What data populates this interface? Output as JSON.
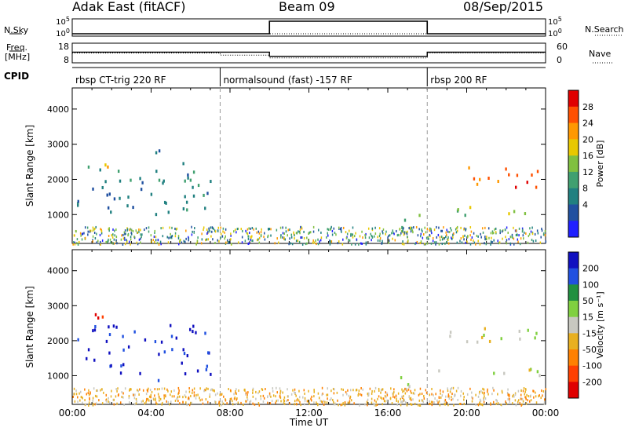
{
  "header": {
    "radar": "Adak East (fitACF)",
    "beam": "Beam 09",
    "date": "08/Sep/2015"
  },
  "side_labels": {
    "nsky": "N.Sky",
    "nsearch": "N.Search",
    "freq": "Freq.",
    "freq_unit": "[MHz]",
    "nave": "Nave",
    "cpid": "CPID"
  },
  "chart_data": [
    {
      "type": "line",
      "panel": "noise",
      "y_left_ticks": [
        "10^5",
        "10^0"
      ],
      "y_right_ticks": [
        "10^5",
        "10^0"
      ],
      "series": [
        {
          "name": "N.Sky",
          "style": "solid",
          "x": [
            "00:00",
            "10:00",
            "10:00",
            "18:00",
            "18:00",
            "24:00"
          ],
          "y": [
            1,
            1,
            100000,
            100000,
            1,
            1
          ]
        },
        {
          "name": "N.Search",
          "style": "dotted",
          "x": [
            "00:00",
            "24:00"
          ],
          "y": [
            1,
            1
          ]
        }
      ]
    },
    {
      "type": "line",
      "panel": "frequency-nave",
      "y_left_ticks": [
        "18",
        "8"
      ],
      "y_right_ticks": [
        "60",
        "0"
      ],
      "series": [
        {
          "name": "Freq.",
          "style": "solid",
          "x": [
            "00:00",
            "10:00",
            "10:00",
            "18:00",
            "18:00",
            "24:00"
          ],
          "y": [
            13.5,
            13.5,
            11,
            11,
            13.5,
            13.5
          ]
        },
        {
          "name": "Nave",
          "style": "dotted",
          "x": [
            "00:00",
            "07:30",
            "07:30",
            "10:00",
            "10:00",
            "18:00",
            "18:00",
            "24:00"
          ],
          "y": [
            30,
            30,
            22,
            22,
            12,
            12,
            30,
            30
          ]
        }
      ]
    },
    {
      "type": "table",
      "panel": "cpid",
      "segments": [
        {
          "label": "rbsp CT-trig 220 RF",
          "start": "00:00"
        },
        {
          "label": "normalsound (fast) -157 RF",
          "start": "07:30"
        },
        {
          "label": "rbsp 200 RF",
          "start": "18:00"
        }
      ]
    },
    {
      "type": "heatmap",
      "panel": "power",
      "ylabel": "Slant Range [km]",
      "xlim": [
        "00:00",
        "24:00"
      ],
      "ylim": [
        180,
        4600
      ],
      "y_ticks": [
        1000,
        2000,
        3000,
        4000
      ],
      "colorbar": {
        "label": "Power [dB]",
        "ticks": [
          "28",
          "24",
          "20",
          "16",
          "12",
          "8",
          "4"
        ],
        "colors": [
          "#e00000",
          "#ff5000",
          "#ff9800",
          "#e8c800",
          "#80c040",
          "#40a070",
          "#208080",
          "#2050a0",
          "#2020ff"
        ]
      },
      "regions": [
        {
          "t": [
            0.2,
            7.0
          ],
          "r": [
            900,
            2500
          ],
          "level": 6
        },
        {
          "t": [
            0.8,
            2.0
          ],
          "r": [
            2300,
            2600
          ],
          "level": 2
        },
        {
          "t": [
            3.8,
            5.0
          ],
          "r": [
            2800,
            3200
          ],
          "level": 6
        },
        {
          "t": [
            16.5,
            18.0
          ],
          "r": [
            600,
            1200
          ],
          "level": 4
        },
        {
          "t": [
            18.0,
            24.0
          ],
          "r": [
            1000,
            1250
          ],
          "level": 4
        },
        {
          "t": [
            18.6,
            23.6
          ],
          "r": [
            1800,
            2400
          ],
          "level": 1
        }
      ]
    },
    {
      "type": "heatmap",
      "panel": "velocity",
      "ylabel": "Slant Range [km]",
      "xlabel": "Time UT",
      "xlim": [
        "00:00",
        "24:00"
      ],
      "ylim": [
        180,
        4600
      ],
      "y_ticks": [
        1000,
        2000,
        3000,
        4000
      ],
      "x_ticks": [
        "00:00",
        "04:00",
        "08:00",
        "12:00",
        "16:00",
        "20:00",
        "00:00"
      ],
      "colorbar": {
        "label": "Velocity [m s⁻¹]",
        "ticks": [
          "200",
          "100",
          "50",
          "15",
          "-15",
          "-50",
          "-100",
          "-200"
        ],
        "colors": [
          "#1010c0",
          "#2050e0",
          "#209040",
          "#80d040",
          "#c8c8c0",
          "#e8b020",
          "#ff8000",
          "#ff4000",
          "#e00000"
        ]
      },
      "regions": [
        {
          "t": [
            0.2,
            7.0
          ],
          "r": [
            900,
            2500
          ],
          "level": 0
        },
        {
          "t": [
            0.8,
            2.0
          ],
          "r": [
            2300,
            2800
          ],
          "level": 8
        },
        {
          "t": [
            16.5,
            18.0
          ],
          "r": [
            600,
            1200
          ],
          "level": 4
        },
        {
          "t": [
            18.0,
            24.0
          ],
          "r": [
            1000,
            1250
          ],
          "level": 4
        },
        {
          "t": [
            18.6,
            23.6
          ],
          "r": [
            1800,
            2400
          ],
          "level": 4
        }
      ]
    }
  ]
}
